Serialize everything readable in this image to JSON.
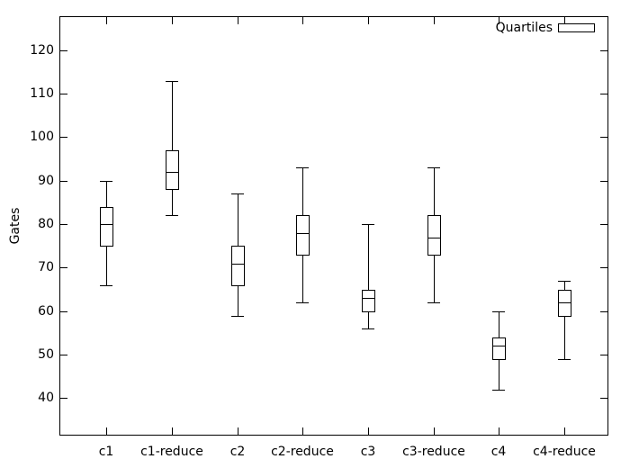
{
  "chart_data": {
    "type": "boxplot",
    "title": "",
    "xlabel": "",
    "ylabel": "Gates",
    "legend": {
      "label": "Quartiles",
      "position": "top-right",
      "sample": "empty-box"
    },
    "grid": false,
    "axis_color": "#000000",
    "background_color": "#ffffff",
    "ylim": [
      31.4,
      127.8
    ],
    "yticks": [
      40,
      50,
      60,
      70,
      80,
      90,
      100,
      110,
      120
    ],
    "categories": [
      "c1",
      "c1-reduce",
      "c2",
      "c2-reduce",
      "c3",
      "c3-reduce",
      "c4",
      "c4-reduce"
    ],
    "series": [
      {
        "name": "Quartiles",
        "boxes": [
          {
            "category": "c1",
            "min": 66,
            "q1": 75,
            "median": 80,
            "q3": 84,
            "max": 90
          },
          {
            "category": "c1-reduce",
            "min": 82,
            "q1": 88,
            "median": 92,
            "q3": 97,
            "max": 113
          },
          {
            "category": "c2",
            "min": 59,
            "q1": 66,
            "median": 71,
            "q3": 75,
            "max": 87
          },
          {
            "category": "c2-reduce",
            "min": 62,
            "q1": 73,
            "median": 78,
            "q3": 82,
            "max": 93
          },
          {
            "category": "c3",
            "min": 56,
            "q1": 60,
            "median": 63,
            "q3": 65,
            "max": 80
          },
          {
            "category": "c3-reduce",
            "min": 62,
            "q1": 73,
            "median": 77,
            "q3": 82,
            "max": 93
          },
          {
            "category": "c4",
            "min": 42,
            "q1": 49,
            "median": 52,
            "q3": 54,
            "max": 60
          },
          {
            "category": "c4-reduce",
            "min": 49,
            "q1": 59,
            "median": 62,
            "q3": 65,
            "max": 67
          }
        ]
      }
    ]
  }
}
